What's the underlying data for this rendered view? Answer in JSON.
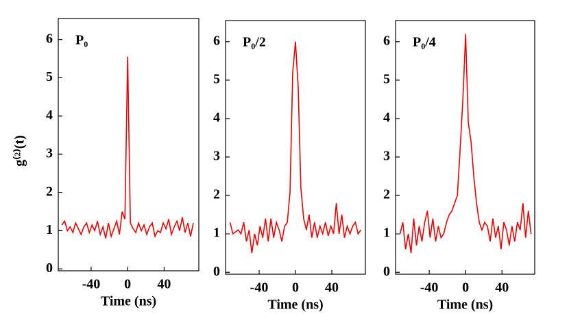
{
  "chart_data": [
    {
      "type": "line",
      "title": "P₀",
      "ylabel": "g⁽²⁾(t)",
      "xlabel": "Time (ns)",
      "color": "#ee0000",
      "xlim": [
        -76,
        78
      ],
      "ylim": [
        -0.05,
        6.55
      ],
      "xticks": [
        -40,
        0,
        40
      ],
      "yticks": [
        0,
        1,
        2,
        3,
        4,
        5,
        6
      ],
      "x": [
        -72,
        -69,
        -66,
        -63,
        -60,
        -57,
        -54,
        -51,
        -48,
        -45,
        -42,
        -39,
        -36,
        -33,
        -30,
        -27,
        -24,
        -21,
        -18,
        -15,
        -12,
        -9,
        -6,
        -3,
        0,
        3,
        6,
        9,
        12,
        15,
        18,
        21,
        24,
        27,
        30,
        33,
        36,
        39,
        42,
        45,
        48,
        51,
        54,
        57,
        60,
        63,
        66,
        69,
        72
      ],
      "values": [
        1.15,
        1.25,
        1.0,
        1.1,
        0.95,
        1.2,
        1.05,
        0.9,
        1.1,
        1.2,
        0.95,
        1.15,
        1.0,
        1.25,
        0.9,
        1.1,
        0.8,
        1.2,
        0.85,
        1.05,
        1.25,
        0.9,
        1.5,
        1.3,
        5.55,
        1.2,
        1.05,
        0.95,
        1.2,
        1.0,
        1.15,
        0.9,
        1.1,
        1.2,
        0.85,
        1.0,
        0.95,
        1.2,
        1.05,
        1.3,
        0.9,
        1.1,
        1.25,
        1.0,
        1.35,
        0.95,
        1.2,
        0.85,
        1.2
      ]
    },
    {
      "type": "line",
      "title": "P₀/2",
      "xlabel": "Time (ns)",
      "color": "#ee0000",
      "xlim": [
        -77,
        77
      ],
      "ylim": [
        -0.05,
        6.55
      ],
      "xticks": [
        -40,
        0,
        40
      ],
      "yticks": [
        0,
        1,
        2,
        3,
        4,
        5,
        6
      ],
      "x": [
        -72,
        -69,
        -66,
        -63,
        -60,
        -57,
        -54,
        -51,
        -48,
        -45,
        -42,
        -39,
        -36,
        -33,
        -30,
        -27,
        -24,
        -21,
        -18,
        -15,
        -12,
        -9,
        -6,
        -3,
        0,
        3,
        6,
        9,
        12,
        15,
        18,
        21,
        24,
        27,
        30,
        33,
        36,
        39,
        42,
        45,
        48,
        51,
        54,
        57,
        60,
        63,
        66,
        69,
        72
      ],
      "values": [
        1.3,
        1.0,
        1.05,
        1.1,
        1.0,
        1.3,
        0.8,
        1.1,
        0.5,
        1.0,
        0.7,
        1.2,
        0.9,
        1.4,
        0.8,
        1.4,
        0.9,
        1.3,
        1.1,
        0.8,
        1.2,
        1.3,
        2.1,
        5.2,
        6.0,
        4.8,
        2.2,
        1.4,
        1.1,
        1.5,
        0.9,
        1.3,
        0.9,
        1.2,
        1.0,
        1.3,
        0.95,
        1.2,
        1.0,
        1.8,
        1.0,
        1.5,
        0.9,
        1.2,
        1.0,
        1.2,
        1.3,
        1.0,
        1.1
      ]
    },
    {
      "type": "line",
      "title": "P₀/4",
      "xlabel": "Time (ns)",
      "color": "#ee0000",
      "xlim": [
        -77,
        76
      ],
      "ylim": [
        -0.05,
        6.55
      ],
      "xticks": [
        -40,
        0,
        40
      ],
      "yticks": [
        0,
        1,
        2,
        3,
        4,
        5,
        6
      ],
      "x": [
        -72,
        -69,
        -66,
        -63,
        -60,
        -57,
        -54,
        -51,
        -48,
        -45,
        -42,
        -39,
        -36,
        -33,
        -30,
        -27,
        -24,
        -21,
        -18,
        -15,
        -12,
        -9,
        -6,
        -3,
        0,
        3,
        6,
        9,
        12,
        15,
        18,
        21,
        24,
        27,
        30,
        33,
        36,
        39,
        42,
        45,
        48,
        51,
        54,
        57,
        60,
        63,
        66,
        69,
        72
      ],
      "values": [
        1.0,
        1.3,
        0.6,
        1.0,
        0.5,
        1.4,
        0.7,
        1.2,
        0.8,
        1.3,
        1.6,
        0.9,
        1.4,
        0.8,
        1.2,
        0.9,
        1.0,
        1.3,
        1.5,
        1.6,
        1.8,
        2.0,
        3.2,
        4.5,
        6.2,
        3.9,
        3.4,
        2.5,
        1.8,
        1.3,
        1.1,
        1.3,
        1.2,
        0.8,
        1.4,
        0.9,
        1.2,
        0.6,
        1.3,
        1.1,
        0.7,
        1.2,
        0.8,
        1.3,
        1.1,
        1.8,
        0.9,
        1.6,
        1.0
      ]
    }
  ]
}
